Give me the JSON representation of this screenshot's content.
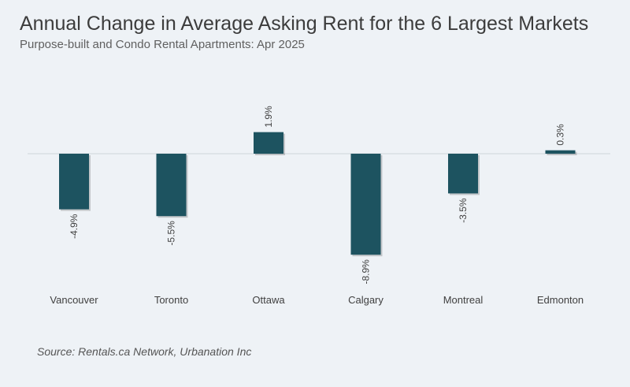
{
  "chart_data": {
    "type": "bar",
    "title": "Annual Change in Average Asking Rent for the 6 Largest Markets",
    "subtitle": "Purpose-built and Condo Rental Apartments: Apr 2025",
    "categories": [
      "Vancouver",
      "Toronto",
      "Ottawa",
      "Calgary",
      "Montreal",
      "Edmonton"
    ],
    "values": [
      -4.9,
      -5.5,
      1.9,
      -8.9,
      -3.5,
      0.3
    ],
    "value_labels": [
      "-4.9%",
      "-5.5%",
      "1.9%",
      "-8.9%",
      "-3.5%",
      "0.3%"
    ],
    "xlabel": "",
    "ylabel": "",
    "unit": "%",
    "bar_color": "#1d5360",
    "source": "Source: Rentals.ca Network, Urbanation Inc"
  }
}
